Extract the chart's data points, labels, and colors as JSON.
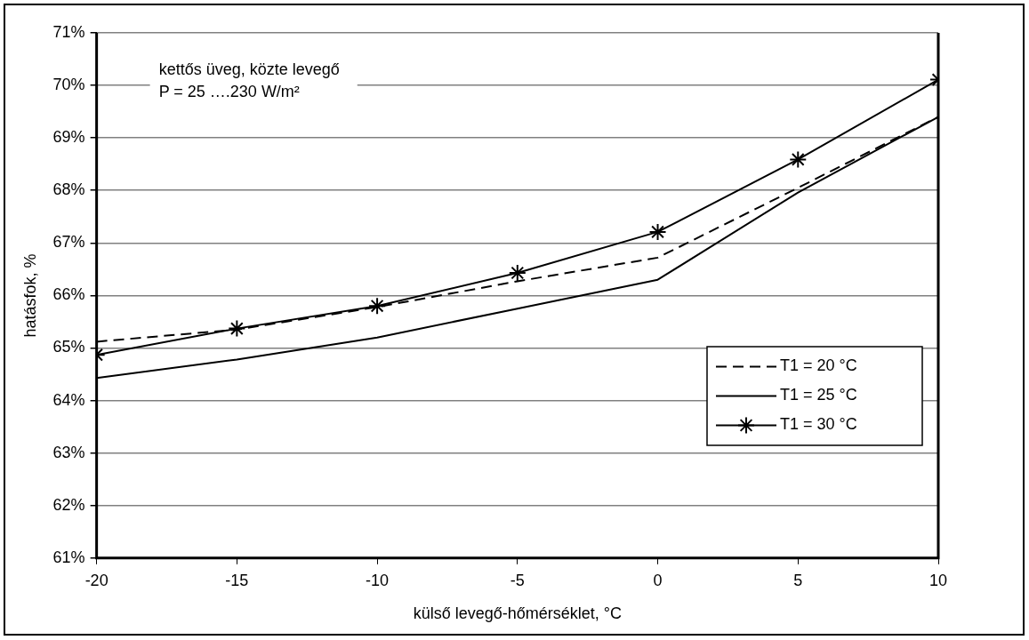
{
  "chart_data": {
    "type": "line",
    "xlabel": "külső levegő-hőmérséklet, °C",
    "ylabel": "hatásfok, %",
    "annotations": [
      "kettős üveg, közte levegő",
      "P = 25 ….230 W/m²"
    ],
    "x": [
      -20,
      -15,
      -10,
      -5,
      0,
      5,
      10
    ],
    "series": [
      {
        "name": "T1 = 20 °C",
        "color": "#000000",
        "line_style": "dashed",
        "marker": "none",
        "values": [
          65.12,
          65.35,
          65.78,
          66.27,
          66.72,
          68.05,
          69.4
        ]
      },
      {
        "name": "T1 = 25 °C",
        "color": "#000000",
        "line_style": "solid",
        "marker": "none",
        "values": [
          64.43,
          64.78,
          65.2,
          65.75,
          66.3,
          67.96,
          69.4
        ]
      },
      {
        "name": "T1 = 30 °C",
        "color": "#000000",
        "line_style": "solid",
        "marker": "cross",
        "values": [
          64.87,
          65.37,
          65.8,
          66.43,
          67.21,
          68.59,
          70.11
        ]
      }
    ],
    "xlim": [
      -20,
      10
    ],
    "xticks": [
      -20,
      -15,
      -10,
      -5,
      0,
      5,
      10
    ],
    "ylim": [
      61,
      71
    ],
    "yticks": [
      {
        "value": 61,
        "label": "61%"
      },
      {
        "value": 62,
        "label": "62%"
      },
      {
        "value": 63,
        "label": "63%"
      },
      {
        "value": 64,
        "label": "64%"
      },
      {
        "value": 65,
        "label": "65%"
      },
      {
        "value": 66,
        "label": "66%"
      },
      {
        "value": 67,
        "label": "67%"
      },
      {
        "value": 68,
        "label": "68%"
      },
      {
        "value": 69,
        "label": "69%"
      },
      {
        "value": 70,
        "label": "70%"
      },
      {
        "value": 71,
        "label": "71%"
      }
    ],
    "grid": "y",
    "legend": "right"
  }
}
